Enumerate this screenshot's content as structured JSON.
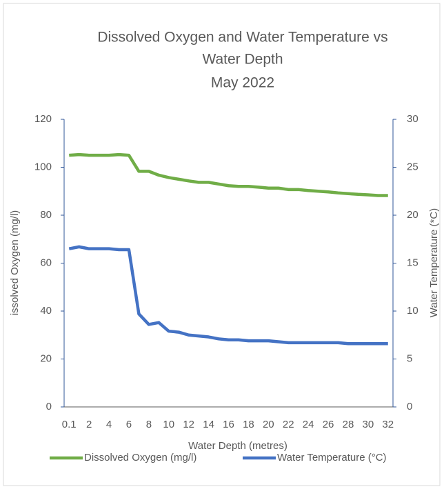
{
  "chart_data": {
    "type": "line",
    "title": [
      "Dissolved Oxygen and Water Temperature vs",
      "Water Depth",
      "May 2022"
    ],
    "x_label": "Water Depth (metres)",
    "y_label": "issolved Oxygen (mg/l)",
    "y2_label": "Water Temperature (*C)",
    "categories": [
      "0.1",
      null,
      "2",
      null,
      "4",
      null,
      "6",
      null,
      "8",
      null,
      "10",
      null,
      "12",
      null,
      "14",
      null,
      "16",
      null,
      "18",
      null,
      "20",
      null,
      "22",
      null,
      "24",
      null,
      "26",
      null,
      "28",
      null,
      "30",
      null,
      "32"
    ],
    "series": [
      {
        "name": "Dissolved Oxygen (mg/l)",
        "color": "#70ad47",
        "values": [
          105,
          105.3,
          105,
          105,
          105,
          105.3,
          105,
          98.3,
          98.3,
          96.7,
          95.7,
          95,
          94.3,
          93.7,
          93.7,
          93,
          92.3,
          92,
          92,
          91.7,
          91.3,
          91.3,
          90.7,
          90.7,
          90.3,
          90,
          89.7,
          89.3,
          89,
          88.7,
          88.5,
          88.2,
          88.2
        ]
      },
      {
        "name": "Water Temperature (°C)",
        "color": "#4472c4",
        "axis": "y2",
        "values": [
          16.5,
          16.7,
          16.5,
          16.5,
          16.5,
          16.4,
          16.4,
          9.7,
          8.6,
          8.8,
          7.9,
          7.8,
          7.5,
          7.4,
          7.3,
          7.1,
          7.0,
          7.0,
          6.9,
          6.9,
          6.9,
          6.8,
          6.7,
          6.7,
          6.7,
          6.7,
          6.7,
          6.7,
          6.6,
          6.6,
          6.6,
          6.6,
          6.6
        ]
      }
    ],
    "ylim": [
      0,
      120
    ],
    "yticks": [
      0,
      20,
      40,
      60,
      80,
      100,
      120
    ],
    "y2lim": [
      0,
      30
    ],
    "y2ticks": [
      0,
      5,
      10,
      15,
      20,
      25,
      30
    ],
    "legend": "bottom"
  }
}
